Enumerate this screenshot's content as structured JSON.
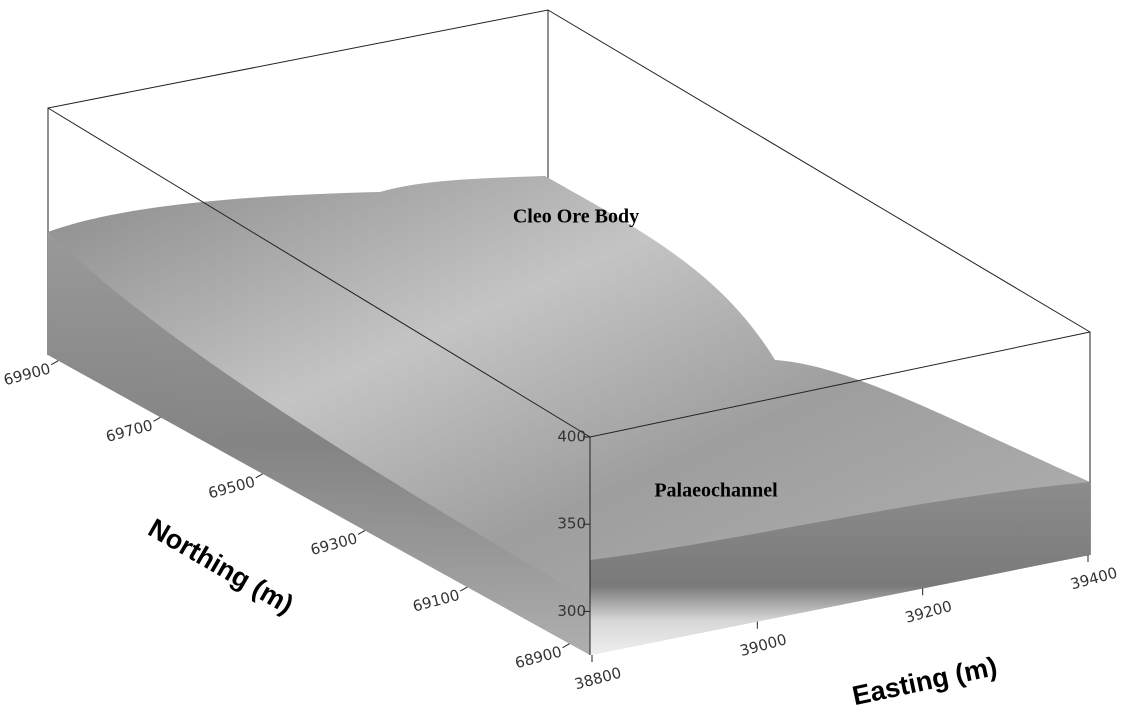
{
  "chart_data": {
    "type": "surface3d",
    "annotations": [
      "Cleo Ore Body",
      "Palaeochannel"
    ],
    "northing_label": "Northing (m)",
    "easting_label": "Easting (m)",
    "northing_lim": [
      68860,
      69920
    ],
    "northing_ticks": [
      68900,
      69100,
      69300,
      69500,
      69700,
      69900
    ],
    "easting_lim": [
      38800,
      39400
    ],
    "easting_ticks": [
      38800,
      39000,
      39200,
      39400
    ],
    "zlim": [
      275,
      400
    ],
    "zticks": [
      300,
      350,
      400
    ]
  }
}
